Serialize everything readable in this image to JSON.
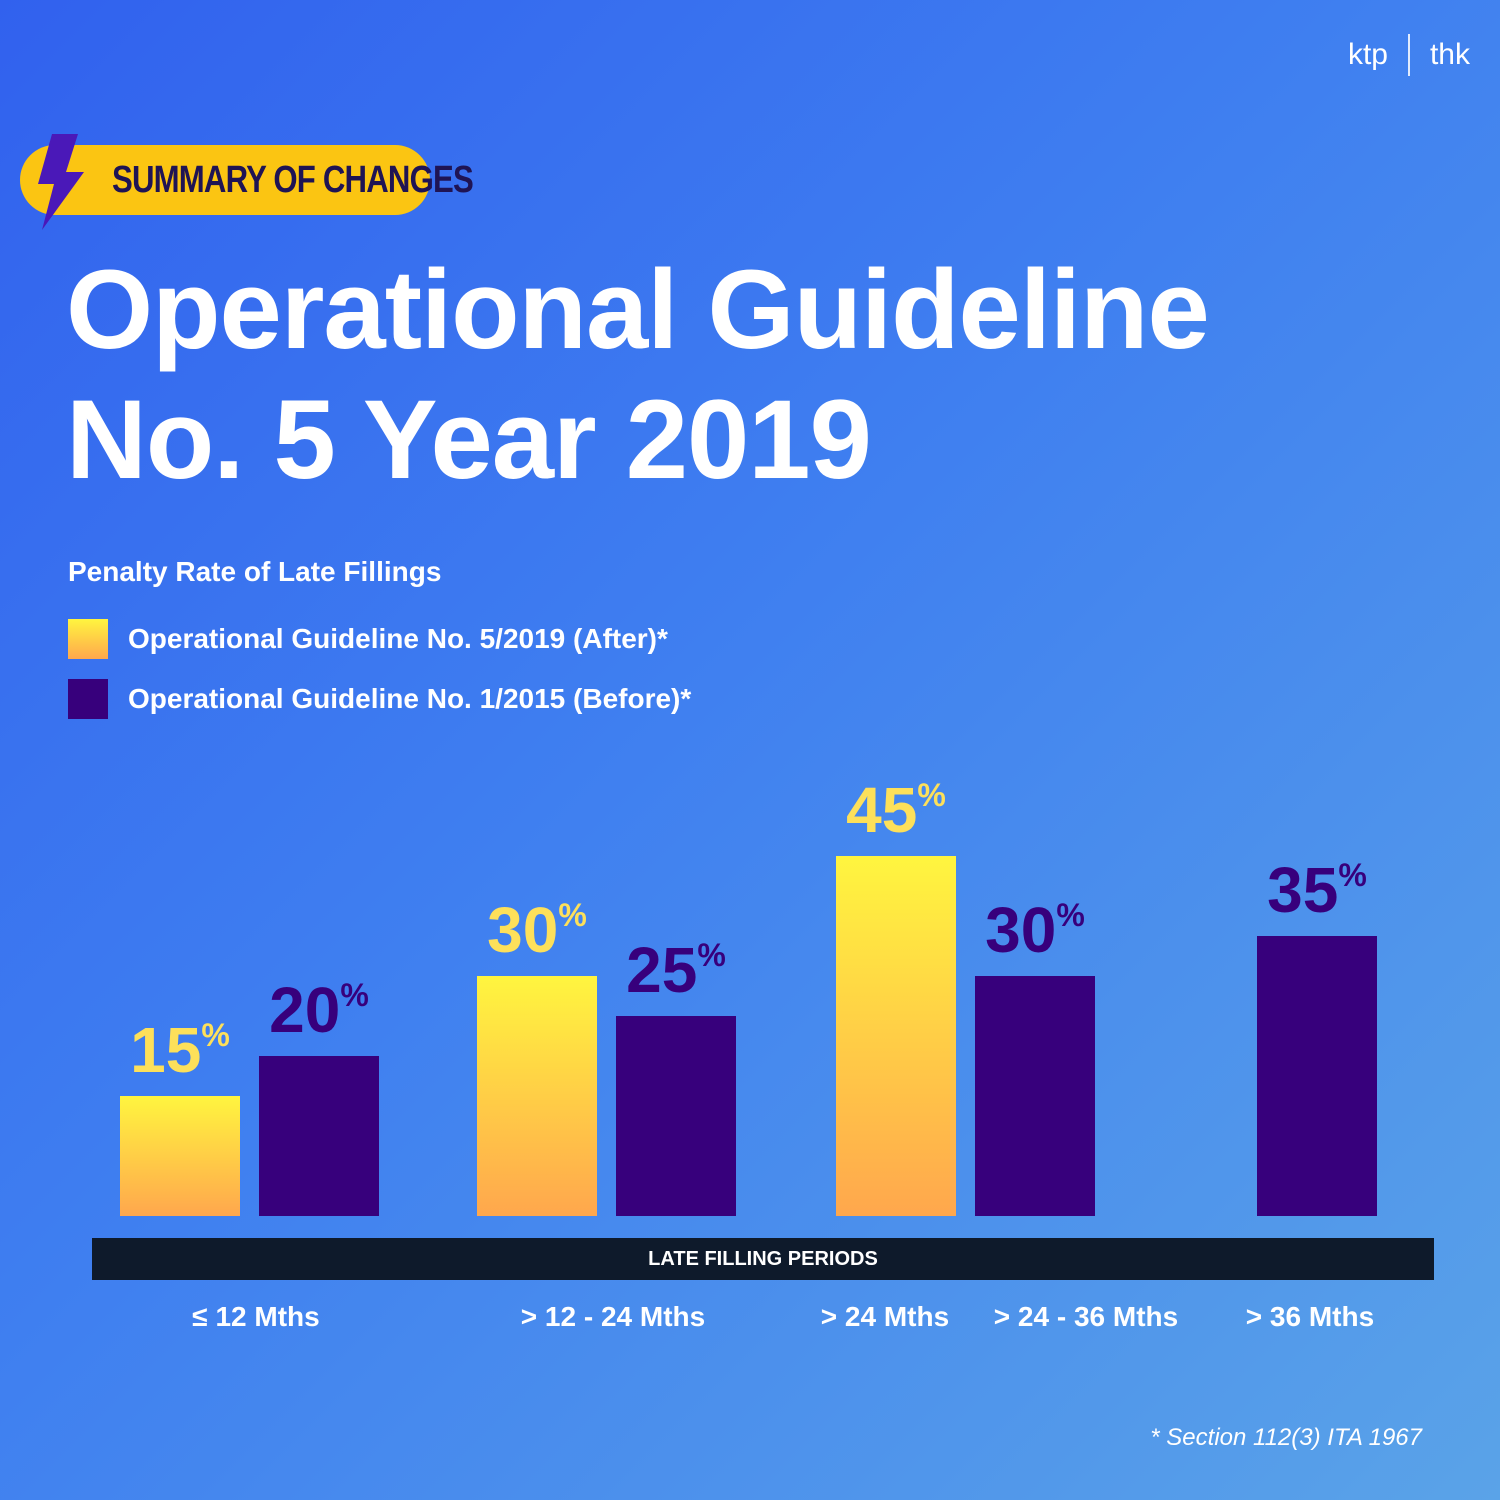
{
  "brand": {
    "left": "ktp",
    "right": "thk"
  },
  "badge": {
    "label": "SUMMARY OF CHANGES",
    "icon": "lightning-bolt-icon"
  },
  "title": {
    "line1": "Operational Guideline",
    "line2": "No. 5 Year 2019"
  },
  "colors": {
    "after_top": "#fff53f",
    "after_bottom": "#ffa74d",
    "after_label": "#fde05a",
    "before": "#37007c",
    "badge": "#fbc512"
  },
  "chart_data": {
    "type": "bar",
    "title": "Penalty Rate of Late Fillings",
    "xlabel": "LATE FILLING PERIODS",
    "ylabel": "",
    "ylim": [
      0,
      50
    ],
    "grid": false,
    "legend_position": "top-left",
    "categories": [
      "≤ 12 Mths",
      "> 12 - 24 Mths",
      "> 24 Mths",
      "> 24 - 36 Mths",
      "> 36 Mths"
    ],
    "series": [
      {
        "name": "Operational Guideline No. 5/2019 (After)*",
        "values": [
          15,
          30,
          45,
          null,
          null
        ],
        "unit": "%"
      },
      {
        "name": "Operational Guideline No. 1/2015 (Before)*",
        "values": [
          20,
          25,
          null,
          30,
          35
        ],
        "unit": "%"
      }
    ]
  },
  "footnote": "* Section 112(3) ITA 1967"
}
